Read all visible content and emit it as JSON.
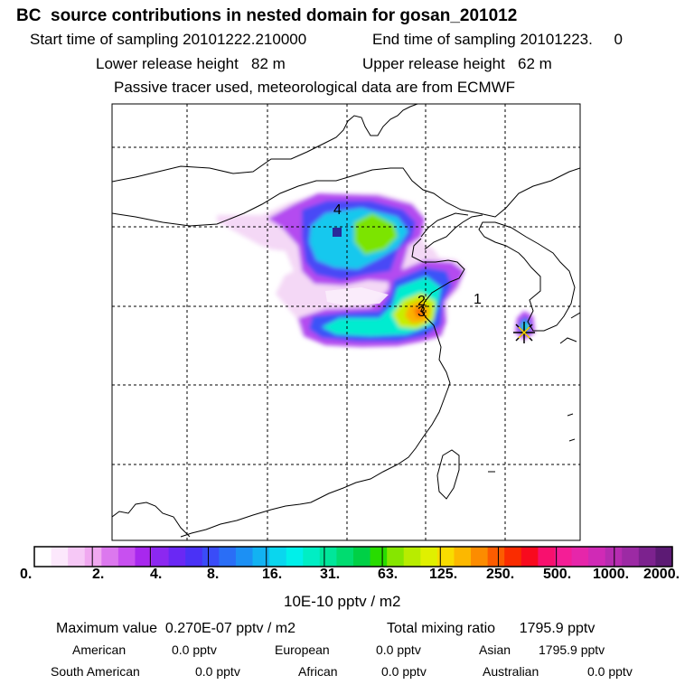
{
  "header": {
    "title": "BC  source contributions in nested domain for gosan_201012",
    "start_time": "Start time of sampling 20101222.210000",
    "end_time": "End time of sampling 20101223.     0",
    "lower_height": "Lower release height   82 m",
    "upper_height": "Upper release height   62 m",
    "tracer_note": "Passive tracer used, meteorological data are from ECMWF"
  },
  "map": {
    "markers": [
      "1",
      "2",
      "3",
      "4"
    ],
    "receptor": "gosan-receptor-star"
  },
  "colorbar": {
    "ticks": [
      "0.",
      "2.",
      "4.",
      "8.",
      "16.",
      "31.",
      "63.",
      "125.",
      "250.",
      "500.",
      "1000.",
      "2000."
    ],
    "unit": "10E-10 pptv / m2",
    "colors": [
      "#ffffff",
      "#fce8fc",
      "#f6c8f6",
      "#f0a8f0",
      "#dc78ee",
      "#c850f0",
      "#a828ee",
      "#8c28f0",
      "#6a28f4",
      "#4a32f6",
      "#3a4cf8",
      "#2a6ef6",
      "#1c90f4",
      "#12b2f2",
      "#0ad6ee",
      "#00f0ea",
      "#00eec4",
      "#00e69a",
      "#00dc70",
      "#00d046",
      "#28dc00",
      "#86e600",
      "#b8ec00",
      "#e0f000",
      "#f8dc00",
      "#fcb800",
      "#fc8c00",
      "#fc5c00",
      "#fa2c00",
      "#f80a1e",
      "#f8106e",
      "#f41e96",
      "#e626aa",
      "#d02ab6",
      "#b62cb0",
      "#9c2aa4",
      "#7c228e",
      "#5c1a74"
    ]
  },
  "stats": {
    "max_value_label": "Maximum value  0.270E-07 pptv / m2",
    "total_mixing": "Total mixing ratio      1795.9 pptv",
    "american_label": "American",
    "american_value": "0.0 pptv",
    "european_label": "European",
    "european_value": "0.0 pptv",
    "asian_label": "Asian",
    "asian_value": "1795.9 pptv",
    "south_american_label": "South American",
    "south_american_value": "0.0 pptv",
    "african_label": "African",
    "african_value": "0.0 pptv",
    "australian_label": "Australian",
    "australian_value": "0.0 pptv"
  }
}
